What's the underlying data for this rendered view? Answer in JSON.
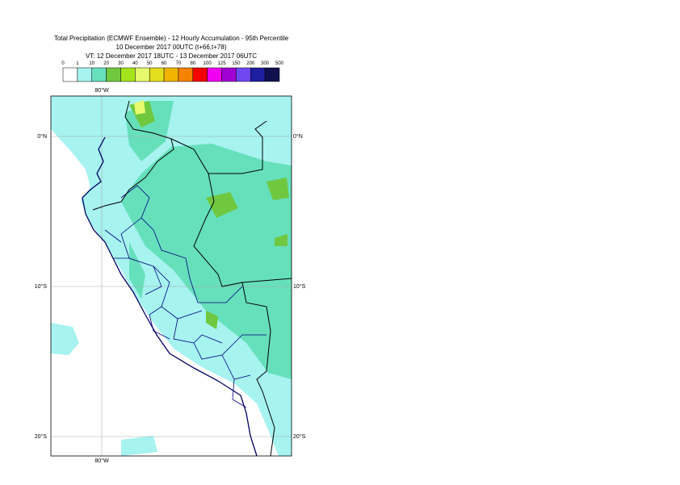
{
  "header": {
    "title": "Total Precipitation (ECMWF Ensemble) - 12 Hourly Accumulation - 95th Percentile",
    "base_time": "10 December 2017 00UTC (t+66,t+78)",
    "valid_time": "VT: 12 December 2017 18UTC - 13 December 2017 06UTC"
  },
  "legend": {
    "labels": [
      "0",
      "1",
      "10",
      "20",
      "30",
      "40",
      "50",
      "60",
      "70",
      "80",
      "100",
      "125",
      "150",
      "200",
      "300",
      "500"
    ],
    "colors": [
      "#ffffff",
      "#a6f3f0",
      "#66e0bb",
      "#70c840",
      "#a4e41c",
      "#e6fa6e",
      "#e2de1e",
      "#f0b400",
      "#f58200",
      "#f50000",
      "#f000f0",
      "#a000d2",
      "#7048f2",
      "#1e1ea0",
      "#10104e"
    ]
  },
  "map": {
    "lon_labels": [
      "80°W",
      "80°W"
    ],
    "lat_labels": [
      "0°N",
      "0°N",
      "10°S",
      "10°S",
      "20°S",
      "20°S"
    ]
  }
}
